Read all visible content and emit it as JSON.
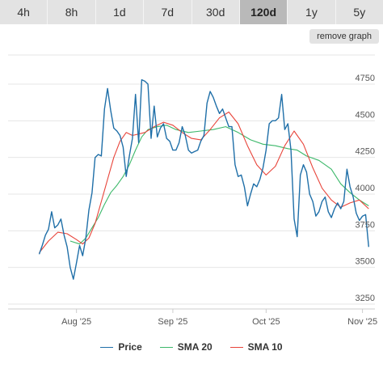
{
  "tabs": [
    {
      "label": "4h",
      "active": false
    },
    {
      "label": "8h",
      "active": false
    },
    {
      "label": "1d",
      "active": false
    },
    {
      "label": "7d",
      "active": false
    },
    {
      "label": "30d",
      "active": false
    },
    {
      "label": "120d",
      "active": true
    },
    {
      "label": "1y",
      "active": false
    },
    {
      "label": "5y",
      "active": false
    }
  ],
  "remove_graph_label": "remove graph",
  "chart_data": {
    "type": "line",
    "x_range": [
      "2025-07-10",
      "2025-11-05"
    ],
    "ylim": [
      3250,
      4750
    ],
    "yticks": [
      3250,
      3500,
      3750,
      4000,
      4250,
      4500,
      4750
    ],
    "xticks": [
      {
        "label": "Aug '25",
        "date": "2025-08-01"
      },
      {
        "label": "Sep '25",
        "date": "2025-09-01"
      },
      {
        "label": "Oct '25",
        "date": "2025-10-01"
      },
      {
        "label": "Nov '25",
        "date": "2025-11-01"
      }
    ],
    "grid": true,
    "legend_position": "bottom",
    "series": [
      {
        "name": "Price",
        "color": "#1f6fa8",
        "points": [
          [
            "2025-07-20",
            3590
          ],
          [
            "2025-07-21",
            3650
          ],
          [
            "2025-07-22",
            3720
          ],
          [
            "2025-07-23",
            3760
          ],
          [
            "2025-07-24",
            3880
          ],
          [
            "2025-07-25",
            3770
          ],
          [
            "2025-07-26",
            3790
          ],
          [
            "2025-07-27",
            3830
          ],
          [
            "2025-07-28",
            3720
          ],
          [
            "2025-07-29",
            3640
          ],
          [
            "2025-07-30",
            3500
          ],
          [
            "2025-07-31",
            3420
          ],
          [
            "2025-08-01",
            3530
          ],
          [
            "2025-08-02",
            3650
          ],
          [
            "2025-08-03",
            3580
          ],
          [
            "2025-08-04",
            3700
          ],
          [
            "2025-08-05",
            3890
          ],
          [
            "2025-08-06",
            4010
          ],
          [
            "2025-08-07",
            4250
          ],
          [
            "2025-08-08",
            4270
          ],
          [
            "2025-08-09",
            4260
          ],
          [
            "2025-08-10",
            4580
          ],
          [
            "2025-08-11",
            4720
          ],
          [
            "2025-08-12",
            4570
          ],
          [
            "2025-08-13",
            4450
          ],
          [
            "2025-08-14",
            4430
          ],
          [
            "2025-08-15",
            4400
          ],
          [
            "2025-08-16",
            4320
          ],
          [
            "2025-08-17",
            4120
          ],
          [
            "2025-08-18",
            4260
          ],
          [
            "2025-08-19",
            4380
          ],
          [
            "2025-08-20",
            4680
          ],
          [
            "2025-08-21",
            4350
          ],
          [
            "2025-08-22",
            4780
          ],
          [
            "2025-08-23",
            4770
          ],
          [
            "2025-08-24",
            4750
          ],
          [
            "2025-08-25",
            4380
          ],
          [
            "2025-08-26",
            4600
          ],
          [
            "2025-08-27",
            4390
          ],
          [
            "2025-08-28",
            4450
          ],
          [
            "2025-08-29",
            4480
          ],
          [
            "2025-08-30",
            4380
          ],
          [
            "2025-08-31",
            4360
          ],
          [
            "2025-09-01",
            4300
          ],
          [
            "2025-09-02",
            4300
          ],
          [
            "2025-09-03",
            4350
          ],
          [
            "2025-09-04",
            4460
          ],
          [
            "2025-09-05",
            4400
          ],
          [
            "2025-09-06",
            4300
          ],
          [
            "2025-09-07",
            4280
          ],
          [
            "2025-09-08",
            4290
          ],
          [
            "2025-09-09",
            4300
          ],
          [
            "2025-09-10",
            4360
          ],
          [
            "2025-09-11",
            4400
          ],
          [
            "2025-09-12",
            4620
          ],
          [
            "2025-09-13",
            4700
          ],
          [
            "2025-09-14",
            4660
          ],
          [
            "2025-09-15",
            4600
          ],
          [
            "2025-09-16",
            4550
          ],
          [
            "2025-09-17",
            4580
          ],
          [
            "2025-09-18",
            4520
          ],
          [
            "2025-09-19",
            4460
          ],
          [
            "2025-09-20",
            4460
          ],
          [
            "2025-09-21",
            4200
          ],
          [
            "2025-09-22",
            4120
          ],
          [
            "2025-09-23",
            4130
          ],
          [
            "2025-09-24",
            4050
          ],
          [
            "2025-09-25",
            3920
          ],
          [
            "2025-09-26",
            4000
          ],
          [
            "2025-09-27",
            4070
          ],
          [
            "2025-09-28",
            4050
          ],
          [
            "2025-09-29",
            4100
          ],
          [
            "2025-09-30",
            4180
          ],
          [
            "2025-10-01",
            4300
          ],
          [
            "2025-10-02",
            4480
          ],
          [
            "2025-10-03",
            4500
          ],
          [
            "2025-10-04",
            4500
          ],
          [
            "2025-10-05",
            4520
          ],
          [
            "2025-10-06",
            4680
          ],
          [
            "2025-10-07",
            4440
          ],
          [
            "2025-10-08",
            4480
          ],
          [
            "2025-10-09",
            4300
          ],
          [
            "2025-10-10",
            3830
          ],
          [
            "2025-10-11",
            3710
          ],
          [
            "2025-10-12",
            4130
          ],
          [
            "2025-10-13",
            4200
          ],
          [
            "2025-10-14",
            4150
          ],
          [
            "2025-10-15",
            4000
          ],
          [
            "2025-10-16",
            3950
          ],
          [
            "2025-10-17",
            3850
          ],
          [
            "2025-10-18",
            3880
          ],
          [
            "2025-10-19",
            3950
          ],
          [
            "2025-10-20",
            3980
          ],
          [
            "2025-10-21",
            3880
          ],
          [
            "2025-10-22",
            3840
          ],
          [
            "2025-10-23",
            3900
          ],
          [
            "2025-10-24",
            3940
          ],
          [
            "2025-10-25",
            3900
          ],
          [
            "2025-10-26",
            3950
          ],
          [
            "2025-10-27",
            4170
          ],
          [
            "2025-10-28",
            4050
          ],
          [
            "2025-10-29",
            3980
          ],
          [
            "2025-10-30",
            3870
          ],
          [
            "2025-10-31",
            3820
          ],
          [
            "2025-11-01",
            3850
          ],
          [
            "2025-11-02",
            3860
          ],
          [
            "2025-11-03",
            3640
          ]
        ]
      },
      {
        "name": "SMA 20",
        "color": "#3cb86a",
        "points": [
          [
            "2025-07-30",
            3680
          ],
          [
            "2025-08-02",
            3660
          ],
          [
            "2025-08-04",
            3700
          ],
          [
            "2025-08-06",
            3770
          ],
          [
            "2025-08-08",
            3840
          ],
          [
            "2025-08-10",
            3930
          ],
          [
            "2025-08-12",
            4010
          ],
          [
            "2025-08-14",
            4060
          ],
          [
            "2025-08-16",
            4120
          ],
          [
            "2025-08-18",
            4200
          ],
          [
            "2025-08-20",
            4300
          ],
          [
            "2025-08-22",
            4390
          ],
          [
            "2025-08-24",
            4440
          ],
          [
            "2025-08-27",
            4460
          ],
          [
            "2025-08-30",
            4470
          ],
          [
            "2025-09-02",
            4440
          ],
          [
            "2025-09-06",
            4420
          ],
          [
            "2025-09-10",
            4430
          ],
          [
            "2025-09-14",
            4440
          ],
          [
            "2025-09-18",
            4460
          ],
          [
            "2025-09-22",
            4420
          ],
          [
            "2025-09-26",
            4370
          ],
          [
            "2025-09-30",
            4340
          ],
          [
            "2025-10-04",
            4330
          ],
          [
            "2025-10-08",
            4310
          ],
          [
            "2025-10-11",
            4300
          ],
          [
            "2025-10-14",
            4260
          ],
          [
            "2025-10-18",
            4230
          ],
          [
            "2025-10-22",
            4170
          ],
          [
            "2025-10-25",
            4070
          ],
          [
            "2025-10-28",
            4010
          ],
          [
            "2025-10-31",
            3960
          ],
          [
            "2025-11-03",
            3920
          ]
        ]
      },
      {
        "name": "SMA 10",
        "color": "#e8443a",
        "points": [
          [
            "2025-07-20",
            3600
          ],
          [
            "2025-07-23",
            3680
          ],
          [
            "2025-07-26",
            3740
          ],
          [
            "2025-07-29",
            3730
          ],
          [
            "2025-08-01",
            3690
          ],
          [
            "2025-08-03",
            3660
          ],
          [
            "2025-08-05",
            3700
          ],
          [
            "2025-08-07",
            3800
          ],
          [
            "2025-08-09",
            3950
          ],
          [
            "2025-08-11",
            4100
          ],
          [
            "2025-08-13",
            4250
          ],
          [
            "2025-08-15",
            4360
          ],
          [
            "2025-08-17",
            4420
          ],
          [
            "2025-08-19",
            4400
          ],
          [
            "2025-08-21",
            4410
          ],
          [
            "2025-08-23",
            4420
          ],
          [
            "2025-08-26",
            4460
          ],
          [
            "2025-08-29",
            4490
          ],
          [
            "2025-09-01",
            4470
          ],
          [
            "2025-09-04",
            4420
          ],
          [
            "2025-09-07",
            4380
          ],
          [
            "2025-09-10",
            4370
          ],
          [
            "2025-09-13",
            4440
          ],
          [
            "2025-09-16",
            4520
          ],
          [
            "2025-09-19",
            4560
          ],
          [
            "2025-09-22",
            4480
          ],
          [
            "2025-09-25",
            4330
          ],
          [
            "2025-09-28",
            4200
          ],
          [
            "2025-10-01",
            4130
          ],
          [
            "2025-10-04",
            4190
          ],
          [
            "2025-10-07",
            4330
          ],
          [
            "2025-10-10",
            4430
          ],
          [
            "2025-10-13",
            4340
          ],
          [
            "2025-10-16",
            4180
          ],
          [
            "2025-10-19",
            4040
          ],
          [
            "2025-10-22",
            3960
          ],
          [
            "2025-10-25",
            3910
          ],
          [
            "2025-10-28",
            3940
          ],
          [
            "2025-10-31",
            3960
          ],
          [
            "2025-11-03",
            3900
          ]
        ]
      }
    ]
  }
}
